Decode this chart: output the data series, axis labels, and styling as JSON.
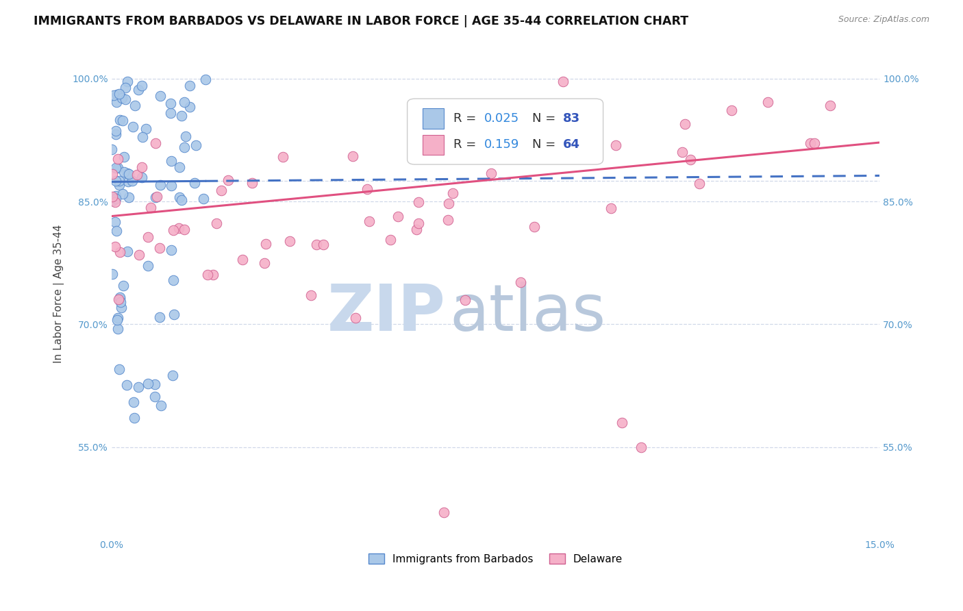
{
  "title": "IMMIGRANTS FROM BARBADOS VS DELAWARE IN LABOR FORCE | AGE 35-44 CORRELATION CHART",
  "source": "Source: ZipAtlas.com",
  "ylabel": "In Labor Force | Age 35-44",
  "xlim": [
    0.0,
    0.15
  ],
  "ylim": [
    0.44,
    1.035
  ],
  "xticks": [
    0.0,
    0.15
  ],
  "xticklabels": [
    "0.0%",
    "15.0%"
  ],
  "yticks": [
    0.55,
    0.7,
    0.85,
    1.0
  ],
  "yticklabels": [
    "55.0%",
    "70.0%",
    "85.0%",
    "100.0%"
  ],
  "series1_name": "Immigrants from Barbados",
  "series1_color": "#aac8e8",
  "series1_edge_color": "#5588cc",
  "series1_line_color": "#4472c4",
  "series1_R": 0.025,
  "series1_N": 83,
  "series2_name": "Delaware",
  "series2_color": "#f5b0c8",
  "series2_edge_color": "#d06090",
  "series2_line_color": "#e05080",
  "series2_R": 0.159,
  "series2_N": 64,
  "legend_box_color1": "#aac8e8",
  "legend_box_color2": "#f5b0c8",
  "legend_R_color": "#3388dd",
  "legend_N_color": "#3355bb",
  "watermark_zip": "ZIP",
  "watermark_atlas": "atlas",
  "watermark_color_zip": "#c8d8ec",
  "watermark_color_atlas": "#b8c8dc",
  "background_color": "#ffffff",
  "grid_color": "#d0d8e8",
  "title_fontsize": 12.5,
  "axis_label_fontsize": 11,
  "tick_fontsize": 10,
  "tick_color": "#5599cc"
}
